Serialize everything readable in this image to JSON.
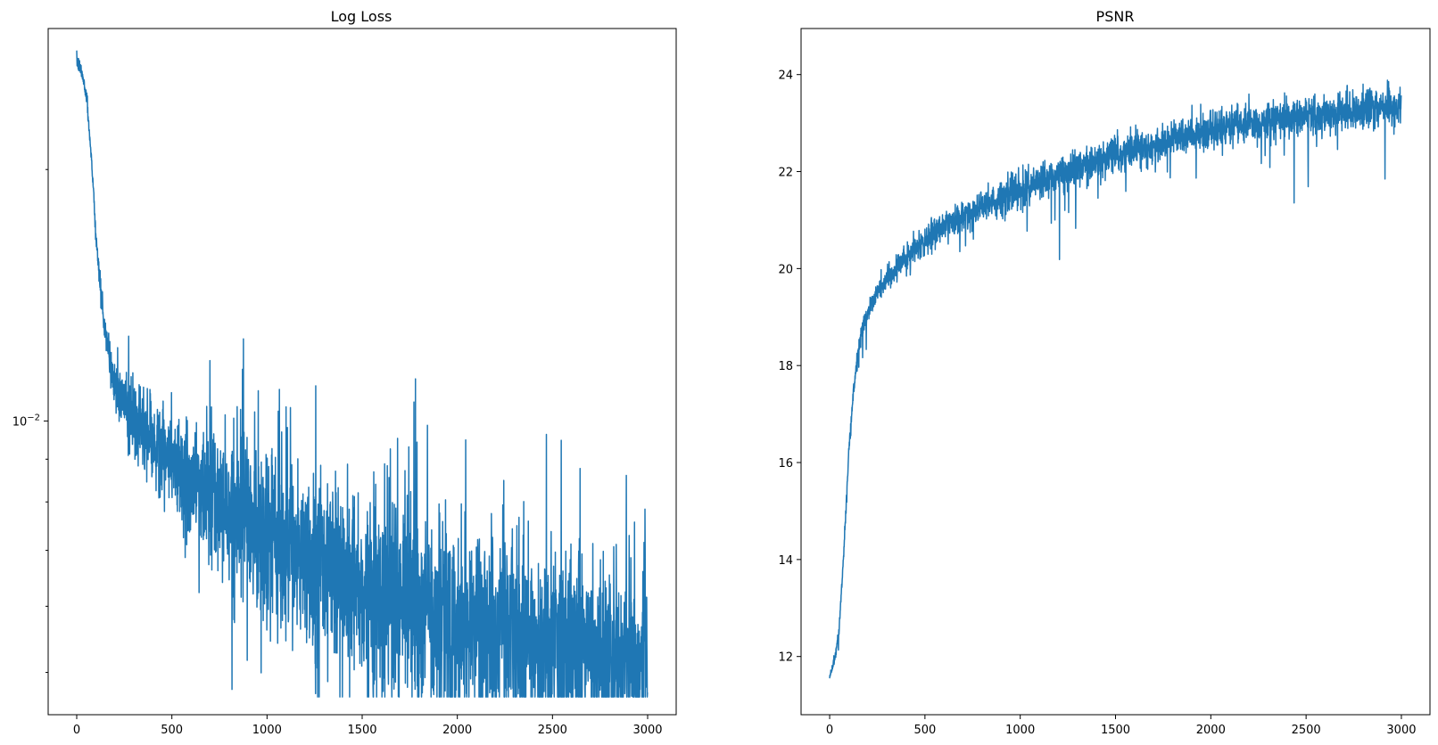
{
  "colors": {
    "series": "#1f77b4",
    "axes": "#000000",
    "background": "#ffffff"
  },
  "chart_data": [
    {
      "type": "line",
      "title": "Log Loss",
      "xlabel": "",
      "ylabel": "",
      "yscale": "log",
      "xlim": [
        -150,
        3150
      ],
      "ylim": [
        0.00445,
        0.0295
      ],
      "x_ticks": [
        0,
        500,
        1000,
        1500,
        2000,
        2500,
        3000
      ],
      "x_tick_labels": [
        "0",
        "500",
        "1000",
        "1500",
        "2000",
        "2500",
        "3000"
      ],
      "y_ticks": [
        0.01
      ],
      "y_tick_labels": [
        "10−2"
      ],
      "y_minor_ticks": [
        0.005,
        0.006,
        0.007,
        0.008,
        0.009,
        0.02
      ],
      "grid": false,
      "legend": false,
      "series": [
        {
          "x": [
            0,
            25,
            50,
            75,
            100,
            125,
            150,
            175,
            200,
            250,
            300,
            400,
            500,
            600,
            700,
            800,
            1000,
            1200,
            1500,
            1800,
            2000,
            2200,
            2500,
            2800,
            3000
          ],
          "values": [
            0.027,
            0.0262,
            0.0245,
            0.021,
            0.0168,
            0.0143,
            0.0128,
            0.0117,
            0.0111,
            0.0105,
            0.01,
            0.0094,
            0.0089,
            0.0085,
            0.0081,
            0.0078,
            0.0073,
            0.0069,
            0.0064,
            0.006,
            0.0058,
            0.0056,
            0.0054,
            0.0052,
            0.0051
          ],
          "noise": [
            0.0005,
            0.0005,
            0.0004,
            0.0004,
            0.0004,
            0.0004,
            0.0005,
            0.0006,
            0.0007,
            0.0008,
            0.0009,
            0.001,
            0.0012,
            0.0013,
            0.0014,
            0.0014,
            0.0015,
            0.0015,
            0.0015,
            0.0015,
            0.0015,
            0.0014,
            0.0013,
            0.0012,
            0.0012
          ],
          "samples": 3000
        }
      ]
    },
    {
      "type": "line",
      "title": "PSNR",
      "xlabel": "",
      "ylabel": "",
      "yscale": "linear",
      "xlim": [
        -150,
        3150
      ],
      "ylim": [
        10.8,
        24.95
      ],
      "x_ticks": [
        0,
        500,
        1000,
        1500,
        2000,
        2500,
        3000
      ],
      "x_tick_labels": [
        "0",
        "500",
        "1000",
        "1500",
        "2000",
        "2500",
        "3000"
      ],
      "y_ticks": [
        12,
        14,
        16,
        18,
        20,
        22,
        24
      ],
      "y_tick_labels": [
        "12",
        "14",
        "16",
        "18",
        "20",
        "22",
        "24"
      ],
      "grid": false,
      "legend": false,
      "series": [
        {
          "x": [
            0,
            25,
            50,
            75,
            100,
            125,
            150,
            175,
            200,
            250,
            300,
            400,
            500,
            600,
            700,
            800,
            1000,
            1200,
            1500,
            1800,
            2000,
            2200,
            2500,
            2800,
            3000
          ],
          "values": [
            11.6,
            11.9,
            12.6,
            14.2,
            16.2,
            17.5,
            18.3,
            18.8,
            19.1,
            19.5,
            19.8,
            20.2,
            20.6,
            20.9,
            21.1,
            21.3,
            21.65,
            21.95,
            22.35,
            22.65,
            22.85,
            23.0,
            23.15,
            23.3,
            23.35
          ],
          "noise": [
            0.06,
            0.08,
            0.1,
            0.1,
            0.1,
            0.12,
            0.14,
            0.16,
            0.18,
            0.2,
            0.22,
            0.25,
            0.27,
            0.28,
            0.3,
            0.3,
            0.32,
            0.32,
            0.33,
            0.33,
            0.34,
            0.35,
            0.35,
            0.35,
            0.35
          ],
          "samples": 3000
        }
      ]
    }
  ]
}
